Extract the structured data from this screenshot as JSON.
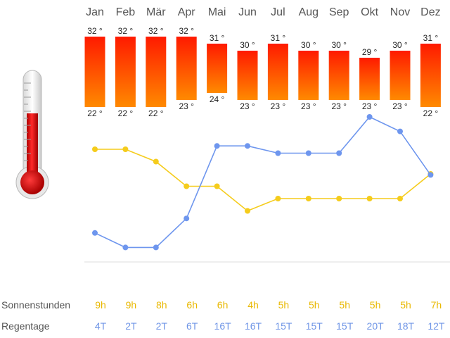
{
  "chart_data": {
    "type": "bar",
    "months": [
      "Jan",
      "Feb",
      "Mär",
      "Apr",
      "Mai",
      "Jun",
      "Jul",
      "Aug",
      "Sep",
      "Okt",
      "Nov",
      "Dez"
    ],
    "temperature": {
      "max": [
        32,
        32,
        32,
        32,
        31,
        30,
        31,
        30,
        30,
        29,
        30,
        31
      ],
      "min": [
        22,
        22,
        22,
        23,
        24,
        23,
        23,
        23,
        23,
        23,
        23,
        22
      ],
      "max_labels": [
        "32 °",
        "32 °",
        "32 °",
        "32 °",
        "31 °",
        "30 °",
        "31 °",
        "30 °",
        "30 °",
        "29 °",
        "30 °",
        "31 °"
      ],
      "min_labels": [
        "22 °",
        "22 °",
        "22 °",
        "23 °",
        "24 °",
        "23 °",
        "23 °",
        "23 °",
        "23 °",
        "23 °",
        "23 °",
        "22 °"
      ]
    },
    "sunshine_hours": [
      9,
      9,
      8,
      6,
      6,
      4,
      5,
      5,
      5,
      5,
      5,
      7
    ],
    "rain_days": [
      4,
      2,
      2,
      6,
      16,
      16,
      15,
      15,
      15,
      20,
      18,
      12
    ],
    "rows": {
      "sun_label": "Sonnenstunden",
      "rain_label": "Regentage",
      "sun_texts": [
        "9h",
        "9h",
        "8h",
        "6h",
        "6h",
        "4h",
        "5h",
        "5h",
        "5h",
        "5h",
        "5h",
        "7h"
      ],
      "rain_texts": [
        "4T",
        "2T",
        "2T",
        "6T",
        "16T",
        "16T",
        "15T",
        "15T",
        "15T",
        "20T",
        "18T",
        "12T"
      ]
    },
    "colors": {
      "bar_top": "#ff1a00",
      "bar_bottom": "#ff8a00",
      "sun_line": "#f5cc1c",
      "rain_line": "#6e96ee",
      "sun_text": "#e9b800",
      "rain_text": "#6f95e6",
      "thermometer_fill": "#e00000"
    },
    "icons": [
      "thermometer-icon"
    ]
  }
}
